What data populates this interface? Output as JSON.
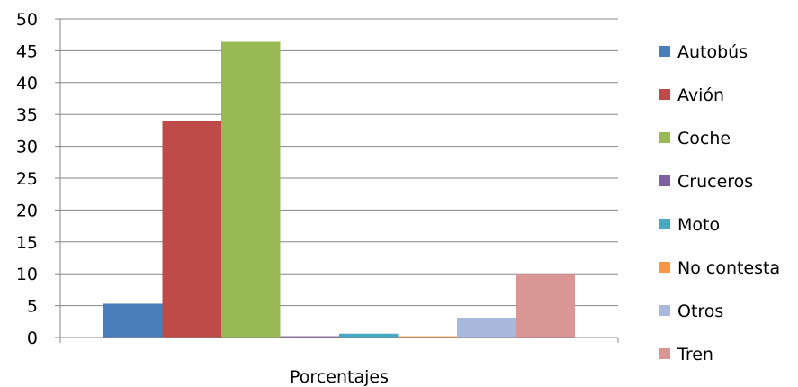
{
  "chart_data": {
    "type": "bar",
    "title": "",
    "xlabel": "",
    "ylabel": "",
    "categories": [
      "Porcentajes"
    ],
    "ylim": [
      0,
      50
    ],
    "yticks": [
      0,
      5,
      10,
      15,
      20,
      25,
      30,
      35,
      40,
      45,
      50
    ],
    "grid": true,
    "legend_position": "right",
    "series": [
      {
        "name": "Autobús",
        "values": [
          5.3
        ],
        "color": "#4a7ebb"
      },
      {
        "name": "Avión",
        "values": [
          33.9
        ],
        "color": "#be4b48"
      },
      {
        "name": "Coche",
        "values": [
          46.4
        ],
        "color": "#98b954"
      },
      {
        "name": "Cruceros",
        "values": [
          0.2
        ],
        "color": "#7d60a0"
      },
      {
        "name": "Moto",
        "values": [
          0.6
        ],
        "color": "#46aac5"
      },
      {
        "name": "No contesta",
        "values": [
          0.2
        ],
        "color": "#f79646"
      },
      {
        "name": "Otros",
        "values": [
          3.1
        ],
        "color": "#a9b9de"
      },
      {
        "name": "Tren",
        "values": [
          10.0
        ],
        "color": "#d99694"
      }
    ]
  }
}
